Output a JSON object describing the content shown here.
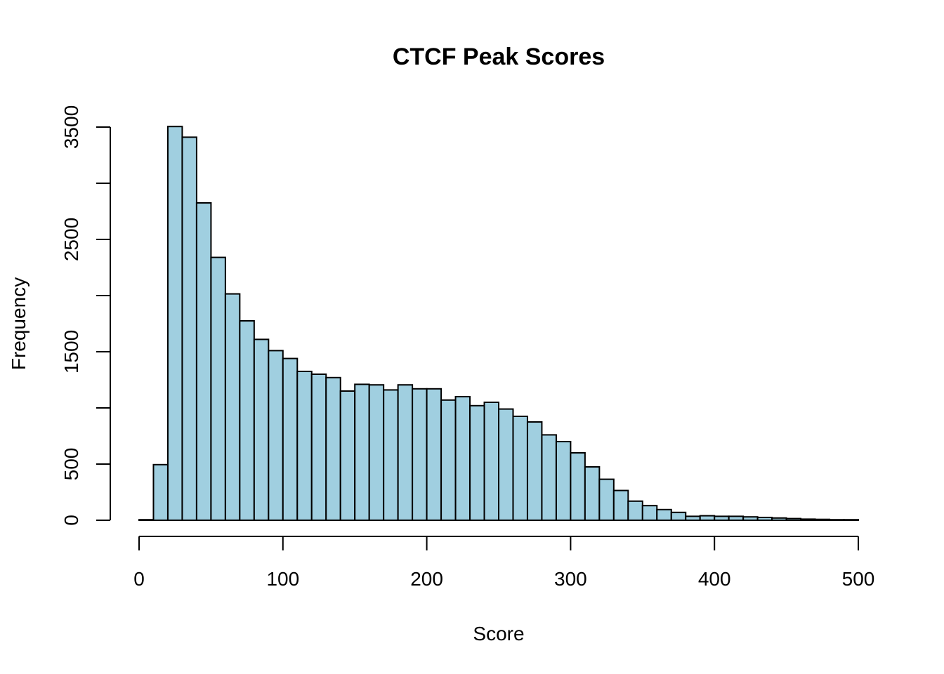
{
  "colors": {
    "bar_fill": "#A0CFE0",
    "bar_stroke": "#000000",
    "background": "#FFFFFF"
  },
  "chart_data": {
    "type": "bar",
    "title": "CTCF Peak Scores",
    "xlabel": "Score",
    "ylabel": "Frequency",
    "xlim": [
      0,
      500
    ],
    "ylim": [
      0,
      3500
    ],
    "bin_width": 10,
    "x_ticks": [
      0,
      100,
      200,
      300,
      400,
      500
    ],
    "x_tick_labels": [
      "0",
      "100",
      "200",
      "300",
      "400",
      "500"
    ],
    "y_ticks": [
      0,
      500,
      1000,
      1500,
      2000,
      2500,
      3000,
      3500
    ],
    "y_tick_labels": [
      "0",
      "500",
      "",
      "1500",
      "",
      "2500",
      "",
      "3500"
    ],
    "bin_starts": [
      0,
      10,
      20,
      30,
      40,
      50,
      60,
      70,
      80,
      90,
      100,
      110,
      120,
      130,
      140,
      150,
      160,
      170,
      180,
      190,
      200,
      210,
      220,
      230,
      240,
      250,
      260,
      270,
      280,
      290,
      300,
      310,
      320,
      330,
      340,
      350,
      360,
      370,
      380,
      390,
      400,
      410,
      420,
      430,
      440,
      450,
      460,
      470,
      480,
      490
    ],
    "values": [
      5,
      495,
      3505,
      3410,
      2825,
      2340,
      2015,
      1775,
      1610,
      1510,
      1440,
      1325,
      1300,
      1270,
      1150,
      1210,
      1205,
      1160,
      1205,
      1170,
      1170,
      1070,
      1100,
      1020,
      1050,
      990,
      925,
      875,
      760,
      700,
      600,
      475,
      365,
      265,
      170,
      130,
      95,
      70,
      35,
      40,
      35,
      35,
      30,
      25,
      20,
      15,
      10,
      8,
      5,
      5
    ],
    "grid": false,
    "legend": "none"
  }
}
